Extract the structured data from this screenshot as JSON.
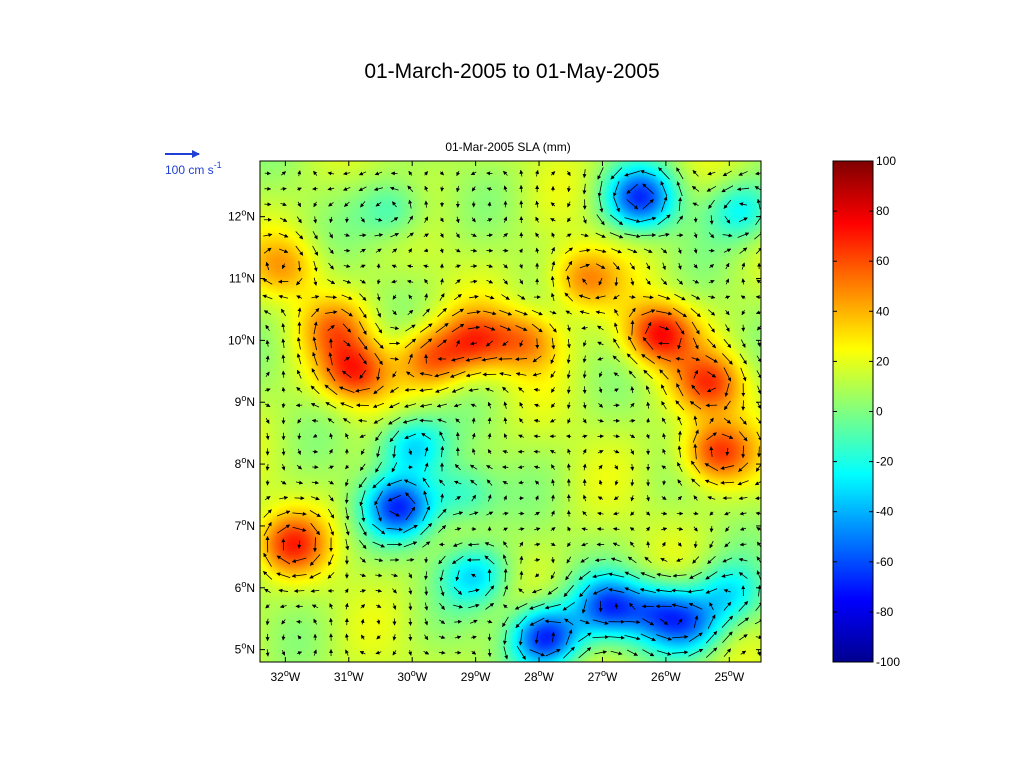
{
  "page": {
    "title": "01-March-2005 to 01-May-2005"
  },
  "scale_arrow": {
    "label": "100 cm s",
    "exponent": "-1",
    "color": "#1f3fd6"
  },
  "chart_data": {
    "type": "heatmap",
    "title": "01-Mar-2005 SLA (mm)",
    "variable": "Sea level anomaly",
    "units": "mm",
    "overlay": "velocity vectors (arrows)",
    "xlim": [
      -32.4,
      -24.5
    ],
    "ylim": [
      4.8,
      12.9
    ],
    "x_ticks": [
      -32,
      -31,
      -30,
      -29,
      -28,
      -27,
      -26,
      -25
    ],
    "x_tick_labels": [
      "32°W",
      "31°W",
      "30°W",
      "29°W",
      "28°W",
      "27°W",
      "26°W",
      "25°W"
    ],
    "y_ticks": [
      5,
      6,
      7,
      8,
      9,
      10,
      11,
      12
    ],
    "y_tick_labels": [
      "5°N",
      "6°N",
      "7°N",
      "8°N",
      "9°N",
      "10°N",
      "11°N",
      "12°N"
    ],
    "colorbar": {
      "min": -100,
      "max": 100,
      "ticks": [
        100,
        80,
        60,
        40,
        20,
        0,
        -20,
        -40,
        -60,
        -80,
        -100
      ],
      "colormap": "jet"
    },
    "background_value": 12,
    "features": [
      {
        "type": "high",
        "lon": -31.9,
        "lat": 6.7,
        "value": 62
      },
      {
        "type": "high",
        "lon": -30.9,
        "lat": 9.5,
        "value": 65
      },
      {
        "type": "high",
        "lon": -29.7,
        "lat": 9.7,
        "value": 55
      },
      {
        "type": "high",
        "lon": -29.0,
        "lat": 10.0,
        "value": 55
      },
      {
        "type": "high",
        "lon": -28.2,
        "lat": 10.0,
        "value": 48
      },
      {
        "type": "high",
        "lon": -31.2,
        "lat": 10.2,
        "value": 45
      },
      {
        "type": "high",
        "lon": -27.3,
        "lat": 11.0,
        "value": 50
      },
      {
        "type": "high",
        "lon": -26.1,
        "lat": 10.1,
        "value": 72
      },
      {
        "type": "high",
        "lon": -25.3,
        "lat": 9.3,
        "value": 60
      },
      {
        "type": "high",
        "lon": -25.2,
        "lat": 8.2,
        "value": 65
      },
      {
        "type": "high",
        "lon": -32.0,
        "lat": 11.2,
        "value": 40
      },
      {
        "type": "low",
        "lon": -30.2,
        "lat": 7.3,
        "value": -60
      },
      {
        "type": "low",
        "lon": -30.0,
        "lat": 8.3,
        "value": -35
      },
      {
        "type": "low",
        "lon": -29.2,
        "lat": 7.5,
        "value": -20
      },
      {
        "type": "low",
        "lon": -27.9,
        "lat": 5.2,
        "value": -70
      },
      {
        "type": "low",
        "lon": -26.9,
        "lat": 5.7,
        "value": -55
      },
      {
        "type": "low",
        "lon": -26.1,
        "lat": 5.6,
        "value": -40
      },
      {
        "type": "low",
        "lon": -25.6,
        "lat": 5.4,
        "value": -35
      },
      {
        "type": "low",
        "lon": -29.0,
        "lat": 6.2,
        "value": -30
      },
      {
        "type": "low",
        "lon": -26.4,
        "lat": 12.3,
        "value": -60
      },
      {
        "type": "low",
        "lon": -24.8,
        "lat": 12.1,
        "value": -25
      },
      {
        "type": "low",
        "lon": -30.3,
        "lat": 12.1,
        "value": -15
      },
      {
        "type": "low",
        "lon": -25.0,
        "lat": 5.9,
        "value": -25
      }
    ]
  }
}
